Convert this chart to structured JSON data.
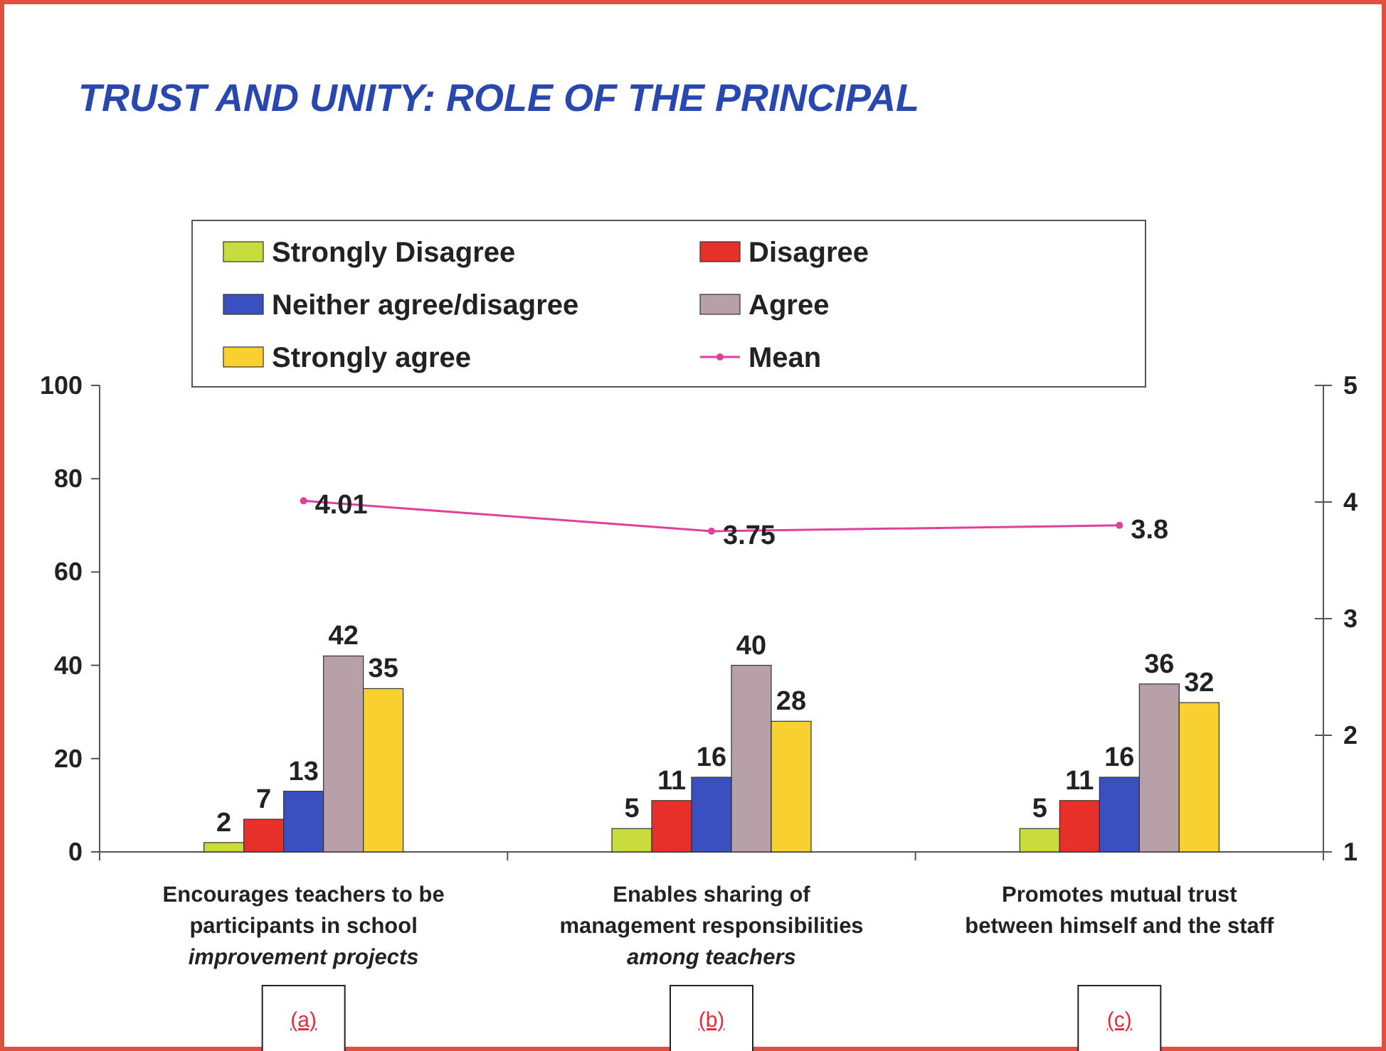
{
  "chart_data": {
    "type": "bar",
    "title": "TRUST AND UNITY:  ROLE OF THE PRINCIPAL",
    "categories": [
      "Encourages teachers to be\nparticipants in school\nimprovement projects",
      "Enables sharing of\nmanagement responsibilities\namong teachers",
      "Promotes mutual trust\nbetween himself and the staff"
    ],
    "series": [
      {
        "name": "Strongly Disagree",
        "color": "#c8dc3c",
        "values": [
          2,
          5,
          5
        ]
      },
      {
        "name": "Disagree",
        "color": "#e8302a",
        "values": [
          7,
          11,
          11
        ]
      },
      {
        "name": "Neither agree/disagree",
        "color": "#3a50c0",
        "values": [
          13,
          16,
          16
        ]
      },
      {
        "name": "Agree",
        "color": "#b8a0a8",
        "values": [
          42,
          40,
          36
        ]
      },
      {
        "name": "Strongly agree",
        "color": "#f8d030",
        "values": [
          35,
          28,
          32
        ]
      },
      {
        "name": "Mean",
        "type": "line",
        "axis": "y2",
        "color": "#e0409a",
        "marker": "circle",
        "values": [
          4.01,
          3.75,
          3.8
        ]
      }
    ],
    "ylim": [
      0,
      100
    ],
    "yticks": [
      0,
      20,
      40,
      60,
      80,
      100
    ],
    "y2lim": [
      1,
      5
    ],
    "y2ticks": [
      1,
      2,
      3,
      4,
      5
    ],
    "data_labels": true,
    "legend": "top",
    "grid": false,
    "annotations": [
      "(a)",
      "(b)",
      "(c)"
    ]
  }
}
